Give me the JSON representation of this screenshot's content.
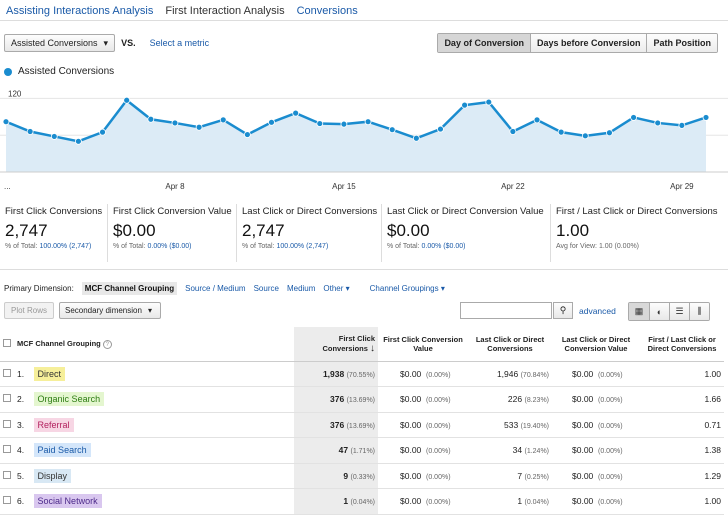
{
  "tabs": [
    "Assisting Interactions Analysis",
    "First Interaction Analysis",
    "Conversions"
  ],
  "metric_selector": {
    "value": "Assisted Conversions",
    "vs": "VS.",
    "select_metric": "Select a metric"
  },
  "view_buttons": [
    "Day of Conversion",
    "Days before Conversion",
    "Path Position"
  ],
  "legend": "Assisted Conversions",
  "chart_data": {
    "type": "line",
    "series": [
      {
        "name": "Assisted Conversions",
        "values": [
          82,
          66,
          58,
          50,
          65,
          117,
          86,
          80,
          73,
          85,
          61,
          81,
          96,
          79,
          78,
          82,
          69,
          55,
          70,
          109,
          114,
          66,
          85,
          65,
          59,
          64,
          89,
          80,
          76,
          89
        ]
      }
    ],
    "y_ticks": [
      "120",
      "60"
    ],
    "ylim": [
      0,
      150
    ],
    "x_labels": [
      "...",
      "Apr 8",
      "Apr 15",
      "Apr 22",
      "Apr 29"
    ],
    "color": "#1a8ccf"
  },
  "summary": [
    {
      "label": "First Click Conversions",
      "value": "2,747",
      "sub_prefix": "% of Total: ",
      "sub_value": "100.00% (2,747)"
    },
    {
      "label": "First Click Conversion Value",
      "value": "$0.00",
      "sub_prefix": "% of Total: ",
      "sub_value": "0.00% ($0.00)"
    },
    {
      "label": "Last Click or Direct Conversions",
      "value": "2,747",
      "sub_prefix": "% of Total: ",
      "sub_value": "100.00% (2,747)"
    },
    {
      "label": "Last Click or Direct Conversion Value",
      "value": "$0.00",
      "sub_prefix": "% of Total: ",
      "sub_value": "0.00% ($0.00)"
    },
    {
      "label": "First / Last Click or Direct Conversions",
      "value": "1.00",
      "sub_prefix": "Avg for View: ",
      "sub_value": "1.00 (0.00%)"
    }
  ],
  "dimensions": {
    "label": "Primary Dimension:",
    "items": [
      "MCF Channel Grouping",
      "Source / Medium",
      "Source",
      "Medium",
      "Other ▾",
      "Channel Groupings ▾"
    ]
  },
  "controls": {
    "plot_rows": "Plot Rows",
    "secondary": "Secondary dimension",
    "advanced": "advanced"
  },
  "table": {
    "headers": [
      "MCF Channel Grouping",
      "First Click Conversions",
      "First Click Conversion Value",
      "Last Click or Direct Conversions",
      "Last Click or Direct Conversion Value",
      "First / Last Click or Direct Conversions"
    ],
    "rows": [
      {
        "idx": "1.",
        "name": "Direct",
        "bg": "#f6ef9a",
        "color": "#333",
        "fc": "1,938",
        "fcp": "(70.55%)",
        "fv": "$0.00",
        "fvp": "(0.00%)",
        "lc": "1,946",
        "lcp": "(70.84%)",
        "lv": "$0.00",
        "lvp": "(0.00%)",
        "ratio": "1.00"
      },
      {
        "idx": "2.",
        "name": "Organic Search",
        "bg": "#e4f6cf",
        "color": "#2d7d12",
        "fc": "376",
        "fcp": "(13.69%)",
        "fv": "$0.00",
        "fvp": "(0.00%)",
        "lc": "226",
        "lcp": "(8.23%)",
        "lv": "$0.00",
        "lvp": "(0.00%)",
        "ratio": "1.66"
      },
      {
        "idx": "3.",
        "name": "Referral",
        "bg": "#f7d6e4",
        "color": "#b3215f",
        "fc": "376",
        "fcp": "(13.69%)",
        "fv": "$0.00",
        "fvp": "(0.00%)",
        "lc": "533",
        "lcp": "(19.40%)",
        "lv": "$0.00",
        "lvp": "(0.00%)",
        "ratio": "0.71"
      },
      {
        "idx": "4.",
        "name": "Paid Search",
        "bg": "#d4e6fa",
        "color": "#1a5aa8",
        "fc": "47",
        "fcp": "(1.71%)",
        "fv": "$0.00",
        "fvp": "(0.00%)",
        "lc": "34",
        "lcp": "(1.24%)",
        "lv": "$0.00",
        "lvp": "(0.00%)",
        "ratio": "1.38"
      },
      {
        "idx": "5.",
        "name": "Display",
        "bg": "#d8e8f4",
        "color": "#333",
        "fc": "9",
        "fcp": "(0.33%)",
        "fv": "$0.00",
        "fvp": "(0.00%)",
        "lc": "7",
        "lcp": "(0.25%)",
        "lv": "$0.00",
        "lvp": "(0.00%)",
        "ratio": "1.29"
      },
      {
        "idx": "6.",
        "name": "Social Network",
        "bg": "#d9c7ef",
        "color": "#4d2a8a",
        "fc": "1",
        "fcp": "(0.04%)",
        "fv": "$0.00",
        "fvp": "(0.00%)",
        "lc": "1",
        "lcp": "(0.04%)",
        "lv": "$0.00",
        "lvp": "(0.00%)",
        "ratio": "1.00"
      }
    ]
  }
}
